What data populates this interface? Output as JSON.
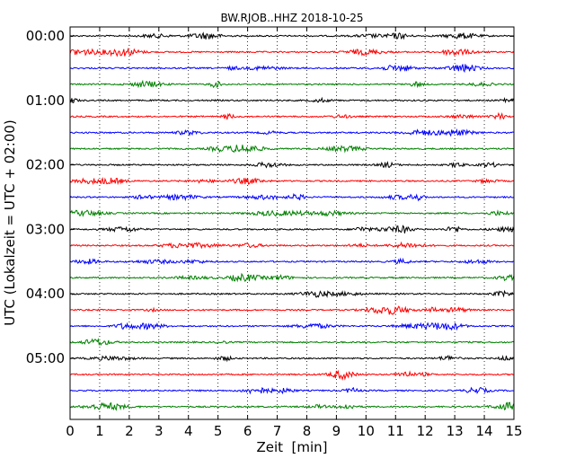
{
  "chart_data": {
    "type": "line",
    "title": "BW.RJOB..HHZ 2018-10-25",
    "xlabel": "Zeit  [min]",
    "ylabel": "UTC (Lokalzeit = UTC + 02:00)",
    "xlim": [
      0,
      15
    ],
    "x_ticks": [
      "0",
      "1",
      "2",
      "3",
      "4",
      "5",
      "6",
      "7",
      "8",
      "9",
      "10",
      "11",
      "12",
      "13",
      "14",
      "15"
    ],
    "y_ticks": [
      "00:00",
      "01:00",
      "02:00",
      "03:00",
      "04:00",
      "05:00"
    ],
    "grid": "vertical dotted at each minute",
    "trace_interval_minutes": 15,
    "trace_count": 24,
    "trace_colors": [
      "#000000",
      "#ff0000",
      "#0000ff",
      "#008000"
    ],
    "series": [
      {
        "start": "00:00",
        "color": "#000000"
      },
      {
        "start": "00:15",
        "color": "#ff0000"
      },
      {
        "start": "00:30",
        "color": "#0000ff"
      },
      {
        "start": "00:45",
        "color": "#008000"
      },
      {
        "start": "01:00",
        "color": "#000000"
      },
      {
        "start": "01:15",
        "color": "#ff0000"
      },
      {
        "start": "01:30",
        "color": "#0000ff"
      },
      {
        "start": "01:45",
        "color": "#008000"
      },
      {
        "start": "02:00",
        "color": "#000000"
      },
      {
        "start": "02:15",
        "color": "#ff0000"
      },
      {
        "start": "02:30",
        "color": "#0000ff"
      },
      {
        "start": "02:45",
        "color": "#008000"
      },
      {
        "start": "03:00",
        "color": "#000000"
      },
      {
        "start": "03:15",
        "color": "#ff0000"
      },
      {
        "start": "03:30",
        "color": "#0000ff"
      },
      {
        "start": "03:45",
        "color": "#008000"
      },
      {
        "start": "04:00",
        "color": "#000000"
      },
      {
        "start": "04:15",
        "color": "#ff0000"
      },
      {
        "start": "04:30",
        "color": "#0000ff"
      },
      {
        "start": "04:45",
        "color": "#008000"
      },
      {
        "start": "05:00",
        "color": "#000000"
      },
      {
        "start": "05:15",
        "color": "#ff0000"
      },
      {
        "start": "05:30",
        "color": "#0000ff"
      },
      {
        "start": "05:45",
        "color": "#008000"
      }
    ]
  }
}
